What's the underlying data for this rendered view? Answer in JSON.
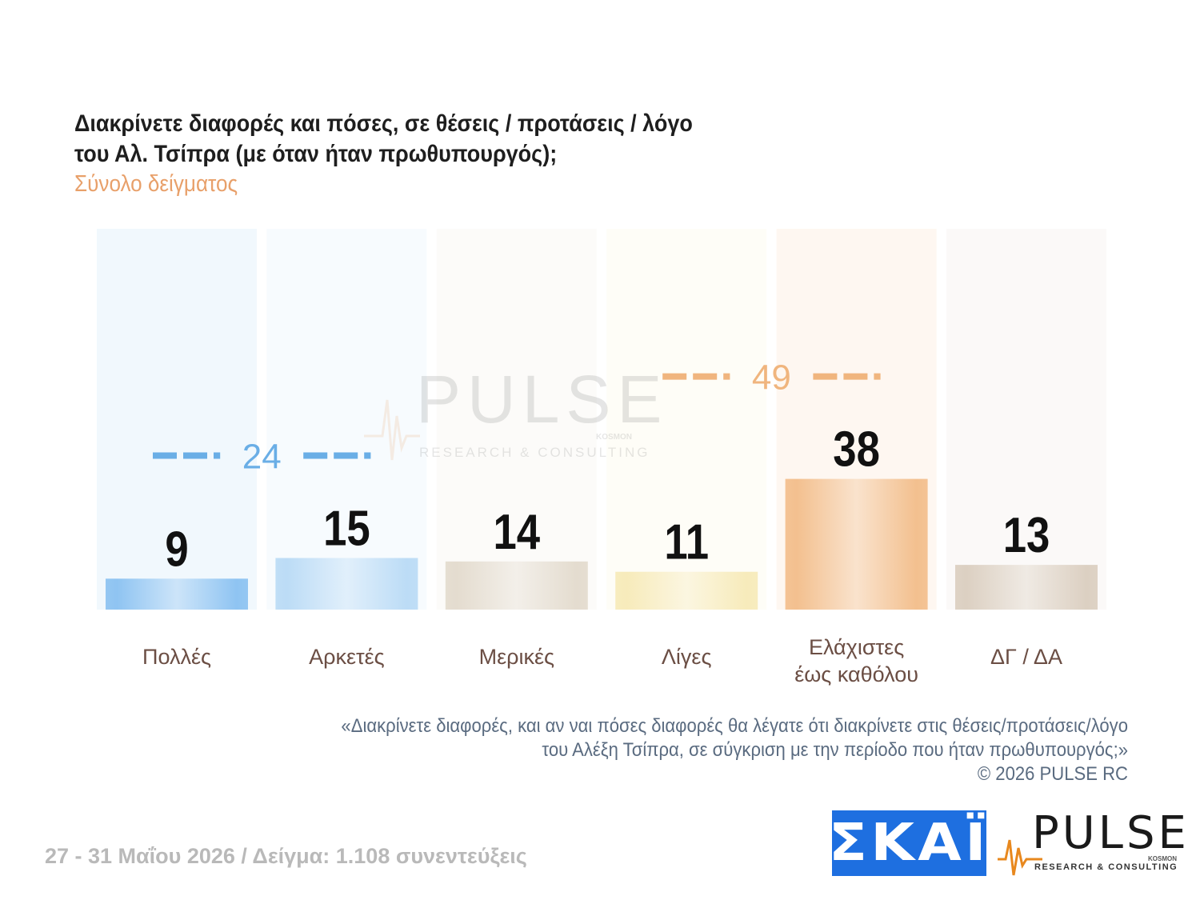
{
  "title": "Διακρίνετε διαφορές και πόσες, σε θέσεις / προτάσεις / λόγο του Αλ. Τσίπρα (με όταν ήταν πρωθυπουργός);",
  "subtitle": "Σύνολο δείγματος",
  "chart_data": {
    "type": "bar",
    "categories": [
      "Πολλές",
      "Αρκετές",
      "Μερικές",
      "Λίγες",
      "Ελάχιστες έως καθόλου",
      "ΔΓ / ΔΑ"
    ],
    "category_lines": [
      [
        "Πολλές"
      ],
      [
        "Αρκετές"
      ],
      [
        "Μερικές"
      ],
      [
        "Λίγες"
      ],
      [
        "Ελάχιστες",
        "έως καθόλου"
      ],
      [
        "ΔΓ / ΔΑ"
      ]
    ],
    "values": [
      9,
      15,
      14,
      11,
      38,
      13
    ],
    "value_labels": [
      "9",
      "15",
      "14",
      "11",
      "38",
      "13"
    ],
    "colors": [
      "#8fc4f2",
      "#bcdcf6",
      "#e4dccf",
      "#f7ebbb",
      "#f3c08f",
      "#dcd0c2"
    ],
    "groups": [
      {
        "label": "24",
        "value": 24,
        "categories": [
          "Πολλές",
          "Αρκετές"
        ],
        "color": "#6aaee6"
      },
      {
        "label": "49",
        "value": 49,
        "categories": [
          "Λίγες",
          "Ελάχιστες έως καθόλου"
        ],
        "color": "#f0b57e"
      }
    ],
    "ylim": [
      0,
      100
    ]
  },
  "watermark": {
    "word": "PULSE",
    "sub": "RESEARCH & CONSULTING",
    "small": "KOSMON"
  },
  "footnote": {
    "line1": "«Διακρίνετε διαφορές, και αν ναι πόσες διαφορές θα λέγατε ότι διακρίνετε στις θέσεις/προτάσεις/λόγο",
    "line2": "του Αλέξη Τσίπρα, σε σύγκριση με την περίοδο που ήταν πρωθυπουργός;»",
    "line3": "©  2026  PULSE RC"
  },
  "bottom_line": "27 - 31  Μαΐου 2026  /  Δείγμα:  1.108 συνεντεύξεις",
  "logos": {
    "skai": "ΣΚΑΪ",
    "pulse_word": "PULSE",
    "pulse_sub": "RESEARCH & CONSULTING",
    "pulse_small": "KOSMON"
  }
}
